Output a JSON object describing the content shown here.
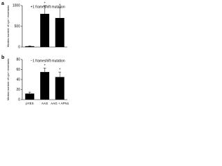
{
  "chart_data": [
    {
      "type": "bar",
      "panel": "a",
      "subtitle": "+1 frameshift mutation",
      "ylabel": "Median number of Lys+ revertants",
      "values": [
        20,
        800,
        700
      ],
      "errors": [
        10,
        200,
        250
      ],
      "annotations": [
        null,
        "*",
        "*"
      ],
      "color": "#000000",
      "ylim": [
        0,
        1000
      ],
      "yticks": [
        0,
        500,
        1000
      ]
    },
    {
      "type": "bar",
      "panel": "b",
      "subtitle": "−1 frameshift mutation",
      "ylabel": "Median number of Lys+ revertants",
      "categories": [
        "pYES",
        "AAG",
        "AAG + APN1"
      ],
      "values": [
        12,
        55,
        45
      ],
      "errors": [
        3,
        8,
        10
      ],
      "annotations": [
        null,
        "*",
        "*"
      ],
      "color": "#000000",
      "ylim": [
        0,
        80
      ],
      "yticks": [
        0,
        20,
        40,
        60,
        80
      ]
    }
  ]
}
